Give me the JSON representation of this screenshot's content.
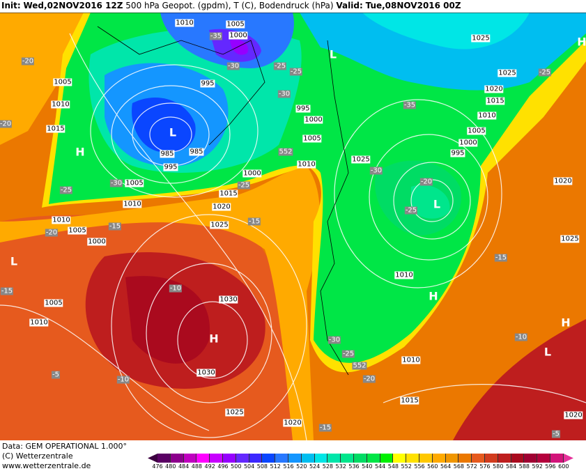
{
  "header": {
    "init_label": "Init:",
    "init": "Wed,02NOV2016 12Z",
    "title": "500 hPa Geopot. (gpdm), T (C), Bodendruck (hPa)",
    "valid_label": "Valid:",
    "valid": "Tue,08NOV2016 00Z"
  },
  "footer": {
    "data": "Data: GEM OPERATIONAL 1.000°",
    "copyright": "(C) Wetterzentrale",
    "url": "www.wetterzentrale.de"
  },
  "legend": {
    "ticks": [
      "476",
      "480",
      "484",
      "488",
      "492",
      "496",
      "500",
      "504",
      "508",
      "512",
      "516",
      "520",
      "524",
      "528",
      "532",
      "536",
      "540",
      "544",
      "548",
      "552",
      "556",
      "560",
      "564",
      "568",
      "572",
      "576",
      "580",
      "584",
      "588",
      "592",
      "596",
      "600"
    ],
    "colors": [
      "#5a0064",
      "#8c008c",
      "#c000c0",
      "#ff00ff",
      "#c800ff",
      "#9600ff",
      "#6428ff",
      "#3c28ff",
      "#0a46ff",
      "#2878ff",
      "#1496ff",
      "#00bef0",
      "#00e6e6",
      "#00e6aa",
      "#00e68c",
      "#00dc64",
      "#00e646",
      "#00f000",
      "#ffff00",
      "#ffe100",
      "#ffc800",
      "#ffaa00",
      "#f09600",
      "#eb7800",
      "#e65a1e",
      "#d23c1e",
      "#be1e1e",
      "#aa0a1e",
      "#a00032",
      "#b4003c",
      "#d2147a"
    ]
  },
  "map": {
    "pressure_labels": [
      "1010",
      "1005",
      "1000",
      "995",
      "995",
      "1000",
      "1005",
      "985",
      "985",
      "995",
      "1000",
      "1005",
      "1015",
      "1010",
      "1020",
      "1010",
      "1005",
      "1000",
      "1025",
      "1010",
      "1025",
      "995",
      "1000",
      "1005",
      "1010",
      "1015",
      "1020",
      "1025",
      "1025",
      "1020",
      "1025",
      "1010",
      "1030",
      "1005",
      "1010",
      "1010",
      "1030",
      "1015",
      "1025",
      "1020",
      "1020",
      "1005",
      "1010",
      "1015"
    ],
    "temp_labels": [
      "-35",
      "-30",
      "-25",
      "-25",
      "-30",
      "-30",
      "-25",
      "-25",
      "-20",
      "-15",
      "-15",
      "-30",
      "-20",
      "-25",
      "-35",
      "-25",
      "-15",
      "-10",
      "-10",
      "-30",
      "-25",
      "-20",
      "-5",
      "-10",
      "-15",
      "-5",
      "-20",
      "-15",
      "-20"
    ],
    "height_labels": [
      "552",
      "552"
    ],
    "centers": [
      "H",
      "L",
      "L",
      "H",
      "H",
      "H",
      "L",
      "L",
      "H",
      "L"
    ]
  }
}
